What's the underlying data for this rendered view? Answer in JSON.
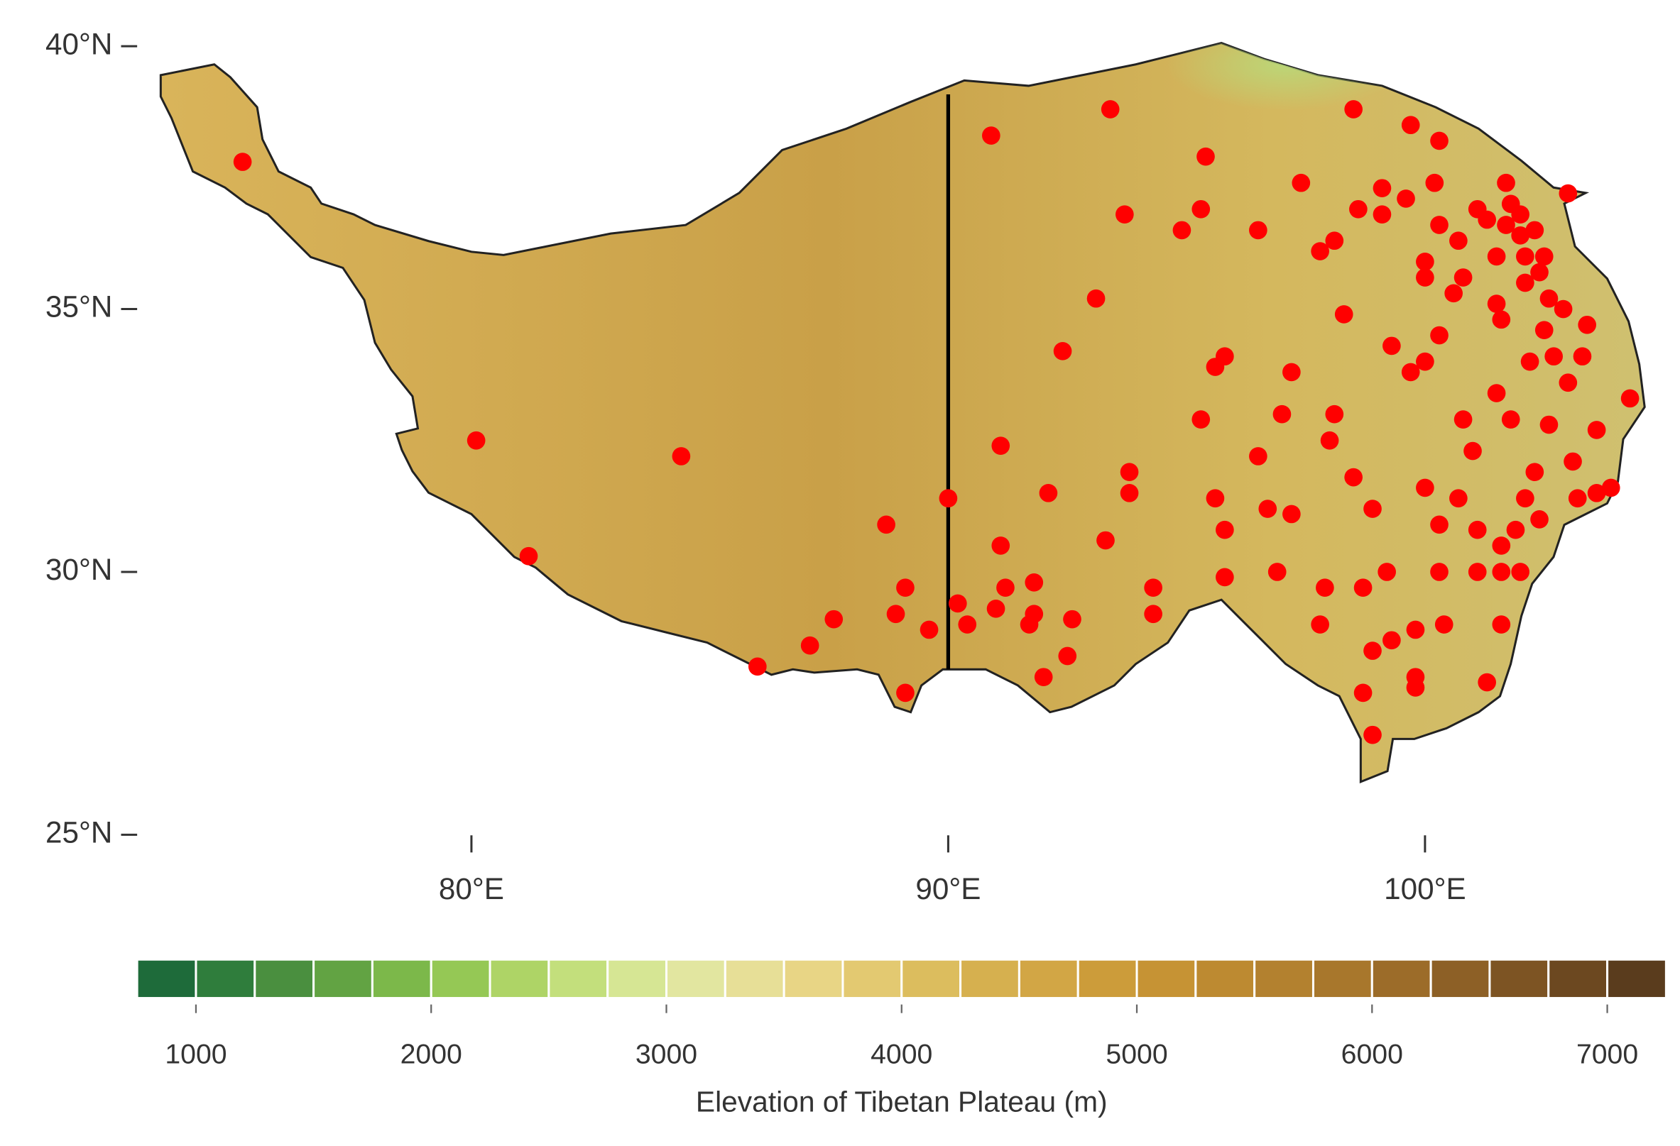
{
  "chart_data": {
    "type": "scatter",
    "x": [
      75.2,
      80.1,
      84.4,
      81.2,
      86.0,
      87.1,
      87.6,
      88.7,
      89.1,
      88.9,
      89.6,
      89.1,
      90.0,
      90.2,
      90.4,
      90.9,
      91.1,
      91.1,
      91.2,
      91.0,
      91.8,
      91.8,
      91.7,
      92.1,
      92.0,
      92.5,
      92.6,
      92.4,
      93.1,
      93.4,
      93.3,
      93.7,
      93.8,
      93.8,
      94.3,
      94.3,
      94.9,
      95.3,
      95.4,
      95.3,
      95.6,
      95.8,
      95.6,
      95.8,
      95.8,
      96.5,
      96.5,
      96.7,
      96.9,
      97.0,
      97.2,
      97.2,
      97.4,
      97.8,
      98.1,
      98.3,
      98.1,
      98.0,
      97.9,
      97.8,
      98.5,
      98.6,
      98.5,
      98.7,
      98.9,
      98.9,
      98.7,
      98.9,
      99.1,
      99.1,
      99.3,
      99.2,
      99.3,
      99.7,
      99.6,
      99.7,
      100.0,
      99.8,
      99.8,
      99.8,
      100.0,
      100.0,
      100.0,
      100.3,
      100.2,
      100.3,
      100.3,
      100.3,
      100.3,
      100.4,
      100.7,
      100.6,
      100.8,
      100.7,
      100.8,
      101.0,
      101.1,
      101.1,
      101.3,
      101.1,
      101.3,
      101.5,
      101.5,
      101.5,
      101.6,
      101.6,
      101.6,
      101.7,
      101.8,
      101.7,
      101.6,
      101.8,
      101.9,
      102.0,
      102.0,
      102.0,
      102.1,
      102.1,
      102.1,
      102.2,
      102.3,
      102.4,
      102.3,
      102.5,
      102.6,
      102.5,
      102.6,
      102.7,
      102.9,
      103.0,
      103.1,
      103.2,
      103.3,
      103.4,
      103.6,
      103.6,
      103.9,
      104.3,
      103.0,
      102.4
    ],
    "values": [
      37.8,
      32.5,
      32.2,
      30.3,
      28.2,
      28.6,
      29.1,
      30.9,
      29.7,
      29.2,
      28.9,
      27.7,
      31.4,
      29.4,
      29.0,
      38.3,
      32.4,
      30.5,
      29.7,
      29.3,
      29.8,
      29.2,
      29.0,
      31.5,
      28.0,
      28.4,
      29.1,
      34.2,
      35.2,
      38.8,
      30.6,
      36.8,
      31.9,
      31.5,
      29.2,
      29.7,
      36.5,
      36.9,
      37.9,
      32.9,
      33.9,
      34.1,
      31.4,
      30.8,
      29.9,
      36.5,
      32.2,
      31.2,
      30.0,
      33.0,
      33.8,
      31.1,
      37.4,
      36.1,
      36.3,
      34.9,
      33.0,
      32.5,
      29.7,
      29.0,
      38.8,
      36.9,
      31.8,
      29.7,
      31.2,
      28.5,
      27.7,
      26.9,
      37.3,
      36.8,
      34.3,
      30.0,
      28.7,
      38.5,
      37.1,
      33.8,
      34.0,
      28.9,
      28.0,
      27.8,
      35.9,
      35.6,
      31.6,
      38.2,
      37.4,
      36.6,
      34.5,
      30.9,
      30.0,
      29.0,
      36.3,
      35.3,
      35.6,
      31.4,
      32.9,
      32.3,
      30.8,
      30.0,
      27.9,
      36.9,
      36.7,
      36.0,
      33.4,
      35.1,
      30.5,
      30.0,
      29.0,
      37.4,
      37.0,
      36.6,
      34.8,
      32.9,
      30.8,
      30.0,
      36.8,
      36.4,
      31.4,
      35.5,
      36.0,
      34.0,
      31.9,
      31.0,
      36.5,
      36.0,
      35.2,
      34.6,
      32.8,
      34.1,
      35.0,
      33.6,
      32.1,
      31.4,
      34.1,
      34.7,
      31.5,
      32.7,
      31.6,
      33.3,
      37.2,
      35.7
    ],
    "color": "#ff0000",
    "xlim": [
      73,
      105.3
    ],
    "ylim": [
      24.8,
      40.9
    ],
    "xticks": [
      {
        "value": 80,
        "label": "80°E"
      },
      {
        "value": 90,
        "label": "90°E"
      },
      {
        "value": 100,
        "label": "100°E"
      }
    ],
    "yticks": [
      {
        "value": 25,
        "label": "25°N"
      },
      {
        "value": 30,
        "label": "30°N"
      },
      {
        "value": 35,
        "label": "35°N"
      },
      {
        "value": 40,
        "label": "40°N"
      }
    ],
    "vline": 90,
    "colorbar": {
      "label": "Elevation of Tibetan Plateau (m)",
      "bins": [
        750,
        1000,
        1250,
        1500,
        1750,
        2000,
        2250,
        2500,
        2750,
        3000,
        3250,
        3500,
        3750,
        4000,
        4250,
        4500,
        4750,
        5000,
        5250,
        5500,
        5750,
        6000,
        6250,
        6500,
        6750,
        7000,
        7250
      ],
      "colors": [
        "#1e6b3a",
        "#2f7d3c",
        "#4a8f3f",
        "#62a343",
        "#7cb84a",
        "#95c855",
        "#aed466",
        "#c3df7c",
        "#d6e694",
        "#e2e6a0",
        "#e7df97",
        "#e8d585",
        "#e3c971",
        "#dcbd5e",
        "#d6b04f",
        "#d2a645",
        "#cc9c3a",
        "#c69334",
        "#bd8a31",
        "#b3812f",
        "#a8772c",
        "#9c6c29",
        "#8d6026",
        "#7d5423",
        "#6c4820",
        "#5a3c1d"
      ],
      "ticks": [
        1000,
        2000,
        3000,
        4000,
        5000,
        6000,
        7000
      ]
    }
  }
}
